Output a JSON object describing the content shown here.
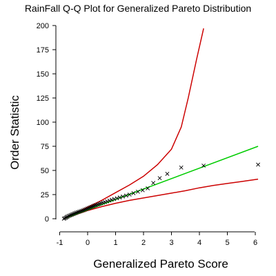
{
  "chart_data": {
    "type": "scatter",
    "title": "RainFall Q-Q Plot for Generalized Pareto Distribution",
    "xlabel": "Generalized Pareto Score",
    "ylabel": "Order Statistic",
    "xlim": [
      -1,
      6.25
    ],
    "ylim": [
      -5,
      210
    ],
    "x_ticks": [
      -1,
      0,
      1,
      2,
      3,
      4,
      5,
      6
    ],
    "y_ticks": [
      0,
      25,
      50,
      75,
      100,
      125,
      150,
      175,
      200
    ],
    "grid": false,
    "marker": "x",
    "colors": {
      "fit_line": "#00cc00",
      "envelope": "#cc0000",
      "points": "#000000"
    },
    "points": {
      "x": [
        -0.85,
        -0.82,
        -0.78,
        -0.75,
        -0.72,
        -0.68,
        -0.64,
        -0.6,
        -0.56,
        -0.52,
        -0.48,
        -0.44,
        -0.4,
        -0.35,
        -0.3,
        -0.25,
        -0.2,
        -0.15,
        -0.1,
        -0.05,
        0.0,
        0.05,
        0.1,
        0.15,
        0.2,
        0.25,
        0.3,
        0.36,
        0.42,
        0.48,
        0.55,
        0.62,
        0.7,
        0.78,
        0.86,
        0.95,
        1.05,
        1.15,
        1.26,
        1.38,
        1.5,
        1.64,
        1.8,
        1.97,
        2.15,
        2.35,
        2.58,
        2.85,
        3.35,
        4.15,
        6.1
      ],
      "y": [
        0,
        0.5,
        1,
        1.6,
        2.2,
        2.8,
        3.3,
        3.8,
        4.3,
        4.8,
        5.3,
        5.8,
        6.3,
        6.8,
        7.3,
        7.8,
        8.3,
        8.8,
        9.4,
        10,
        10.6,
        11.2,
        11.8,
        12.4,
        13,
        13.6,
        14.2,
        14.8,
        15.4,
        16,
        16.6,
        17.2,
        18,
        18.8,
        19.6,
        20.4,
        21.2,
        22,
        23,
        24,
        25,
        26.5,
        28,
        29.5,
        31.5,
        37,
        42,
        46.5,
        53,
        55,
        56
      ]
    },
    "fit_line": {
      "x": [
        -0.85,
        6.1
      ],
      "y": [
        0,
        75
      ]
    },
    "upper_envelope": {
      "x": [
        -0.85,
        -0.5,
        0,
        0.5,
        1,
        1.5,
        2,
        2.5,
        3,
        3.35,
        3.6,
        3.9,
        4.15
      ],
      "y": [
        0,
        5,
        12,
        19,
        27,
        35,
        44,
        56,
        72,
        95,
        125,
        165,
        197
      ]
    },
    "lower_envelope": {
      "x": [
        -0.85,
        -0.5,
        0,
        0.5,
        1,
        1.5,
        2,
        2.5,
        3,
        3.5,
        4,
        4.5,
        5,
        5.5,
        6.1
      ],
      "y": [
        0,
        3.5,
        8.5,
        12.5,
        16,
        19,
        21.5,
        24,
        26.5,
        29,
        32,
        34.5,
        36.5,
        38.5,
        41
      ]
    }
  }
}
